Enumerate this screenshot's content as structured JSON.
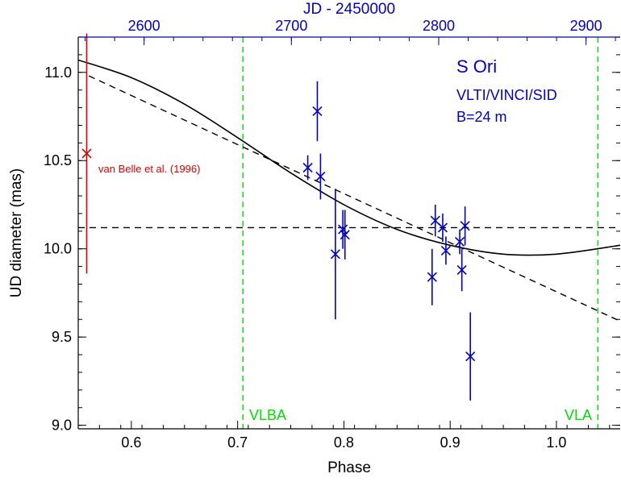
{
  "chart_data": {
    "type": "scatter",
    "xlabel": "Phase",
    "ylabel": "UD diameter (mas)",
    "top_axis_label": "JD - 2450000",
    "xlim": [
      0.55,
      1.06
    ],
    "ylim": [
      8.98,
      11.2
    ],
    "top_xlim": [
      2555.3,
      2923.2
    ],
    "x_ticks": [
      "0.6",
      "0.7",
      "0.8",
      "0.9",
      "1.0"
    ],
    "y_ticks": [
      "9.0",
      "9.5",
      "10.0",
      "10.5",
      "11.0"
    ],
    "top_ticks": [
      "2600",
      "2700",
      "2800",
      "2900"
    ],
    "grid": false,
    "annotations": {
      "star": "S Ori",
      "instrument": "VLTI/VINCI/SID",
      "baseline": "B=24 m",
      "reference": "van Belle et al. (1996)",
      "vlba": "VLBA",
      "vla": "VLA"
    },
    "colors": {
      "axes": "#000000",
      "vinci": "#0000cc",
      "reference": "#dd0000",
      "epochs": "#00dd00",
      "top_axis": "#0000cc"
    },
    "series": [
      {
        "name": "VLTI/VINCI/SID",
        "points": [
          {
            "x": 0.766,
            "y": 10.46,
            "err": 0.07
          },
          {
            "x": 0.775,
            "y": 10.78,
            "err": 0.17
          },
          {
            "x": 0.778,
            "y": 10.41,
            "err": 0.13
          },
          {
            "x": 0.792,
            "y": 9.97,
            "err": 0.37
          },
          {
            "x": 0.799,
            "y": 10.11,
            "err": 0.11
          },
          {
            "x": 0.801,
            "y": 10.08,
            "err": 0.14
          },
          {
            "x": 0.883,
            "y": 9.84,
            "err": 0.16
          },
          {
            "x": 0.886,
            "y": 10.16,
            "err": 0.09
          },
          {
            "x": 0.893,
            "y": 10.12,
            "err": 0.08
          },
          {
            "x": 0.896,
            "y": 9.99,
            "err": 0.08
          },
          {
            "x": 0.909,
            "y": 10.04,
            "err": 0.07
          },
          {
            "x": 0.911,
            "y": 9.88,
            "err": 0.12
          },
          {
            "x": 0.914,
            "y": 10.13,
            "err": 0.11
          },
          {
            "x": 0.919,
            "y": 9.39,
            "err": 0.25
          }
        ]
      },
      {
        "name": "van Belle et al. (1996)",
        "points": [
          {
            "x": 0.558,
            "y": 10.54,
            "err": 0.68
          }
        ]
      }
    ],
    "curves": {
      "sinusoid": [
        [
          0.55,
          11.07
        ],
        [
          0.6,
          10.97
        ],
        [
          0.65,
          10.82
        ],
        [
          0.7,
          10.63
        ],
        [
          0.75,
          10.43
        ],
        [
          0.8,
          10.25
        ],
        [
          0.85,
          10.11
        ],
        [
          0.9,
          10.02
        ],
        [
          0.95,
          9.97
        ],
        [
          1.0,
          9.97
        ],
        [
          1.06,
          10.02
        ]
      ],
      "linear": [
        [
          0.56,
          10.98
        ],
        [
          1.06,
          9.59
        ]
      ],
      "constant": 10.12
    },
    "epoch_lines": [
      0.705,
      1.039
    ]
  }
}
